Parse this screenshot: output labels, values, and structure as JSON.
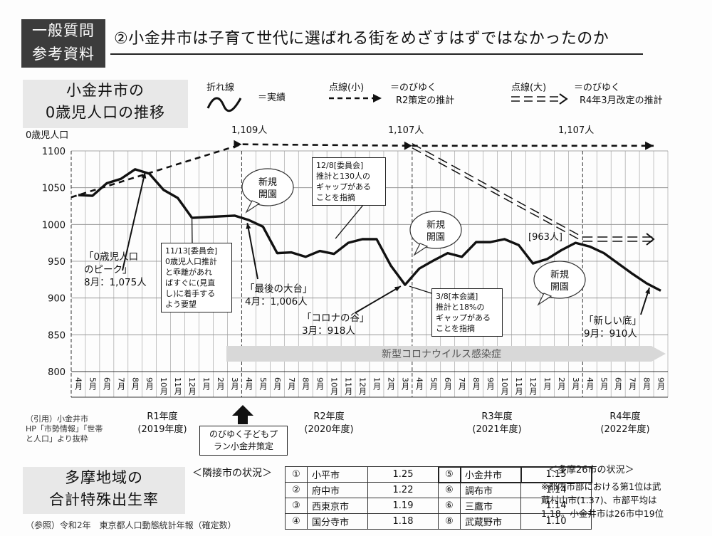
{
  "header": {
    "badge_line1": "一般質問",
    "badge_line2": "参考資料",
    "title": "②小金井市は子育て世代に選ばれる街をめざすはずではなかったのか"
  },
  "chart_panel": {
    "line1": "小金井市の",
    "line2": "0歳児人口の推移"
  },
  "legend": {
    "solid_title": "折れ線",
    "solid_desc": "＝実績",
    "small_title": "点線(小)",
    "small_desc1": "＝のびゆく",
    "small_desc2": "R2策定の推計",
    "large_title": "点線(大)",
    "large_desc1": "＝のびゆく",
    "large_desc2": "R4年3月改定の推計"
  },
  "chart_data": {
    "type": "line",
    "ylabel": "0歳児人口",
    "ylim": [
      800,
      1100
    ],
    "yticks": [
      "1100",
      "1050",
      "1000",
      "950",
      "900",
      "850",
      "800"
    ],
    "x": [
      "4月",
      "5月",
      "6月",
      "7月",
      "8月",
      "9月",
      "10月",
      "11月",
      "12月",
      "1月",
      "2月",
      "3月",
      "4月",
      "5月",
      "6月",
      "7月",
      "8月",
      "9月",
      "10月",
      "11月",
      "12月",
      "1月",
      "2月",
      "3月",
      "4月",
      "5月",
      "6月",
      "7月",
      "8月",
      "9月",
      "10月",
      "11月",
      "12月",
      "1月",
      "2月",
      "3月",
      "4月",
      "5月",
      "6月",
      "7月",
      "8月",
      "9月"
    ],
    "series": [
      {
        "type": "actual",
        "values": [
          1040,
          1039,
          1056,
          1062,
          1075,
          1069,
          1047,
          1036,
          1009,
          1010,
          1011,
          1012,
          1006,
          997,
          961,
          962,
          956,
          964,
          960,
          975,
          980,
          980,
          944,
          918,
          940,
          951,
          961,
          956,
          976,
          976,
          980,
          972,
          947,
          953,
          965,
          975,
          970,
          961,
          947,
          933,
          920,
          910
        ]
      },
      {
        "type": "projection_r2",
        "points": [
          [
            0,
            1037
          ],
          [
            12,
            1109
          ],
          [
            24,
            1107
          ],
          [
            41,
            1107
          ]
        ]
      },
      {
        "type": "projection_r4",
        "points": [
          [
            24,
            1107
          ],
          [
            36,
            980
          ],
          [
            41,
            980
          ]
        ]
      }
    ],
    "fiscal_years": [
      {
        "line1": "R1年度",
        "line2": "(2019年度)"
      },
      {
        "line1": "R2年度",
        "line2": "(2020年度)"
      },
      {
        "line1": "R3年度",
        "line2": "(2021年度)"
      },
      {
        "line1": "R4年度",
        "line2": "(2022年度)"
      }
    ],
    "top_labels": [
      "1,109人",
      "1,107人",
      "1,107人"
    ],
    "covid_label": "新型コロナウイルス感染症",
    "bracket_label": "[963人]",
    "bubbles": [
      "新規\n開園",
      "新規\n開園",
      "新規\n開園"
    ],
    "annotations": {
      "peak_line1": "「0歳児人口",
      "peak_line2": "のピーク」",
      "peak_line3": "8月：1,075人",
      "last_line1": "「最後の大台」",
      "last_line2": "4月：1,006人",
      "corona_line1": "「コロナの谷」",
      "corona_line2": "3月：918人",
      "bottom_line1": "「新しい底」",
      "bottom_line2": "9月：910人"
    },
    "boxes": {
      "nov13": [
        "11/13[委員会]",
        "0歳児人口推計",
        "と乖離があれ",
        "ばすぐに(見直",
        "し)に着手する",
        "よう要望"
      ],
      "dec8": [
        "12/8[委員会]",
        "推計と130人の",
        "ギャップがある",
        "ことを指摘"
      ],
      "mar8": [
        "3/8[本会議]",
        "推計と18%の",
        "ギャップがある",
        "ことを指摘"
      ]
    },
    "plan_line1": "のびゆく子どもプ",
    "plan_line2": "ラン小金井策定"
  },
  "citation": {
    "line1": "（引用）小金井市",
    "line2": "HP「市勢情報」「世帯",
    "line3": "と人口」より抜粋"
  },
  "birth_panel": {
    "line1": "多摩地域の",
    "line2": "合計特殊出生率"
  },
  "neighbor_label": "＜隣接市の状況＞",
  "neighbor_rows": [
    {
      "rank": "①",
      "city": "小平市",
      "value": "1.25",
      "rank2": "⑤",
      "city2": "小金井市",
      "value2": "1.15"
    },
    {
      "rank": "②",
      "city": "府中市",
      "value": "1.22",
      "rank2": "⑥",
      "city2": "調布市",
      "value2": "1.14"
    },
    {
      "rank": "③",
      "city": "西東京市",
      "value": "1.19",
      "rank2": "⑥",
      "city2": "三鷹市",
      "value2": "1.14"
    },
    {
      "rank": "④",
      "city": "国分寺市",
      "value": "1.18",
      "rank2": "⑧",
      "city2": "武蔵野市",
      "value2": "1.10"
    }
  ],
  "tama": {
    "title": "＜多摩26市の状況＞",
    "line1": "※都内市部における第1位は武",
    "line2": "蔵村山市(1.37)、市部平均は",
    "line3": "1.18。小金井市は26市中19位"
  },
  "source_note": "（参照）令和2年　東京都人口動態統計年報（確定数）"
}
